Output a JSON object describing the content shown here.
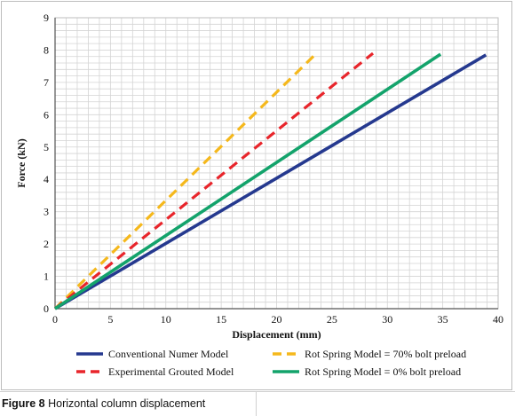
{
  "caption": {
    "figure_number": "Figure 8",
    "text": "Horizontal column displacement"
  },
  "chart_data": {
    "type": "line",
    "title": "",
    "xlabel": "Displacement (mm)",
    "ylabel": "Force (kN)",
    "xlim": [
      0,
      40
    ],
    "ylim": [
      0,
      9
    ],
    "x_major_ticks": [
      0,
      5,
      10,
      15,
      20,
      25,
      30,
      35,
      40
    ],
    "y_major_ticks": [
      0,
      1,
      2,
      3,
      4,
      5,
      6,
      7,
      8,
      9
    ],
    "x_minor_step": 1,
    "y_minor_step": 0.2,
    "grid": true,
    "legend_position": "bottom",
    "series": [
      {
        "name": "Conventional Numer Model",
        "color": "#25398f",
        "dash": "solid",
        "x": [
          0,
          38.9
        ],
        "y": [
          0,
          7.85
        ]
      },
      {
        "name": "Rot Spring Model = 70% bolt preload",
        "color": "#f5b81c",
        "dash": "dashed",
        "x": [
          0,
          23.6
        ],
        "y": [
          0,
          7.9
        ]
      },
      {
        "name": "Experimental Grouted Model",
        "color": "#e8252b",
        "dash": "dashed",
        "x": [
          0,
          28.7
        ],
        "y": [
          0,
          7.9
        ]
      },
      {
        "name": "Rot Spring Model = 0% bolt preload",
        "color": "#13a36b",
        "dash": "solid",
        "x": [
          0,
          34.8
        ],
        "y": [
          0,
          7.87
        ]
      }
    ]
  }
}
